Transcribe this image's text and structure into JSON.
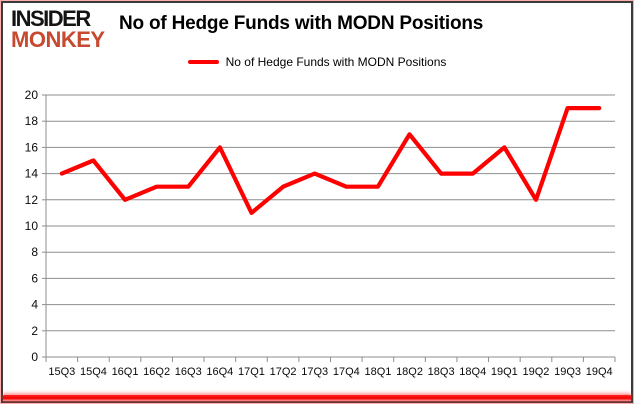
{
  "brand": {
    "line1": "INSIDER",
    "line2": "MONKEY",
    "accent_color": "#c7492f"
  },
  "header": {
    "title": "No of Hedge Funds with MODN Positions"
  },
  "legend": {
    "label": "No of Hedge Funds with MODN Positions",
    "swatch_color": "#fe0000"
  },
  "chart_data": {
    "type": "line",
    "title": "No of Hedge Funds with MODN Positions",
    "categories": [
      "15Q3",
      "15Q4",
      "16Q1",
      "16Q2",
      "16Q3",
      "16Q4",
      "17Q1",
      "17Q2",
      "17Q3",
      "17Q4",
      "18Q1",
      "18Q2",
      "18Q3",
      "18Q4",
      "19Q1",
      "19Q2",
      "19Q3",
      "19Q4"
    ],
    "series": [
      {
        "name": "No of Hedge Funds with MODN Positions",
        "color": "#fe0000",
        "values": [
          14,
          15,
          12,
          13,
          13,
          16,
          11,
          13,
          14,
          13,
          13,
          17,
          14,
          14,
          16,
          12,
          19,
          19
        ]
      }
    ],
    "xlabel": "",
    "ylabel": "",
    "ylim": [
      0,
      20
    ],
    "y_ticks": [
      0,
      2,
      4,
      6,
      8,
      10,
      12,
      14,
      16,
      18,
      20
    ],
    "grid": true,
    "grid_color": "#8e8e8e",
    "axis_color": "#8e8e8e",
    "tick_label_color": "#0a0a0a",
    "legend_position": "top-center"
  },
  "frame": {
    "border_color": "#3b3b3b",
    "outer_edge_color": "#ffacac",
    "bottom_bar_color": "#f20000"
  }
}
